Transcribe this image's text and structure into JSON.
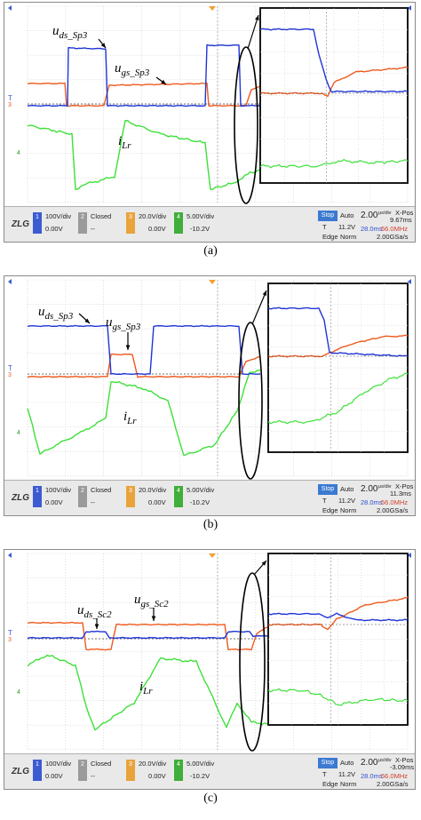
{
  "panels": [
    {
      "caption": "(a)",
      "labels": {
        "uds": {
          "main": "u",
          "sub": "ds_Sp3"
        },
        "ugs": {
          "main": "u",
          "sub": "gs_Sp3"
        },
        "ilr": {
          "main": "i",
          "sub": "Lr"
        }
      },
      "status": {
        "ch1_scale": "100V/div",
        "ch1_offset": "0.00V",
        "ch2_state": "Closed",
        "ch2_offset": "--",
        "ch3_scale": "20.0V/div",
        "ch3_offset": "0.00V",
        "ch4_scale": "5.00V/div",
        "ch4_offset": "-10.2V",
        "mode": "Stop",
        "trigger": "Auto",
        "time_div": "2.00",
        "time_unit": "μs/div",
        "xpos_label": "X-Pos",
        "xpos": "9.67ms",
        "t_level": "11.2V",
        "record": "28.0ms",
        "freq": "56.0MHz",
        "edge": "Edge",
        "norm": "Norm",
        "rate": "2.00GSa/s"
      }
    },
    {
      "caption": "(b)",
      "labels": {
        "uds": {
          "main": "u",
          "sub": "ds_Sp3"
        },
        "ugs": {
          "main": "u",
          "sub": "gs_Sp3"
        },
        "ilr": {
          "main": "i",
          "sub": "Lr"
        }
      },
      "status": {
        "ch1_scale": "100V/div",
        "ch1_offset": "0.00V",
        "ch2_state": "Closed",
        "ch2_offset": "--",
        "ch3_scale": "20.0V/div",
        "ch3_offset": "0.00V",
        "ch4_scale": "5.00V/div",
        "ch4_offset": "-10.2V",
        "mode": "Stop",
        "trigger": "Auto",
        "time_div": "2.00",
        "time_unit": "μs/div",
        "xpos_label": "X-Pos",
        "xpos": "11.3ms",
        "t_level": "11.2V",
        "record": "28.0ms",
        "freq": "56.0MHz",
        "edge": "Edge",
        "norm": "Norm",
        "rate": "2.00GSa/s"
      }
    },
    {
      "caption": "(c)",
      "labels": {
        "uds": {
          "main": "u",
          "sub": "ds_Sc2"
        },
        "ugs": {
          "main": "u",
          "sub": "gs_Sc2"
        },
        "ilr": {
          "main": "i",
          "sub": "Lr"
        }
      },
      "status": {
        "ch1_scale": "100V/div",
        "ch1_offset": "0.00V",
        "ch2_state": "Closed",
        "ch2_offset": "--",
        "ch3_scale": "20.0V/div",
        "ch3_offset": "0.00V",
        "ch4_scale": "5.00V/div",
        "ch4_offset": "-10.2V",
        "mode": "Stop",
        "trigger": "Auto",
        "time_div": "2.00",
        "time_unit": "μs/div",
        "xpos_label": "X-Pos",
        "xpos": "-3.09ms",
        "t_level": "11.2V",
        "record": "28.0ms",
        "freq": "56.0MHz",
        "edge": "Edge",
        "norm": "Norm",
        "rate": "2.00GSa/s"
      }
    }
  ],
  "markers": {
    "t": "T",
    "ch3": "3",
    "ch4": "4"
  },
  "channel_numbers": [
    "1",
    "2",
    "3",
    "4"
  ],
  "logo": "ZLG",
  "colors": {
    "ch1": "#1f35d6",
    "ch3": "#ef5a1e",
    "ch4": "#3ee03a",
    "grid": "#c9c9c9",
    "ch2_box": "#9a9a9a",
    "ch3_box": "#e8a33a",
    "ch4_box": "#3fae3a",
    "ch1_box": "#3c5bd1"
  },
  "chart_data": [
    {
      "type": "line",
      "title": "",
      "series": [
        {
          "name": "u_ds_Sp3",
          "x": [
            0,
            1,
            1.1,
            2.4,
            2.5,
            5,
            5.1,
            5.5,
            6
          ],
          "y": [
            0,
            0,
            2.9,
            2.9,
            0,
            0,
            2.4,
            2.4,
            0
          ]
        },
        {
          "name": "u_gs_Sp3",
          "x": [
            0,
            1,
            1.1,
            2.4,
            2.6,
            5,
            5.1,
            5.5,
            6
          ],
          "y": [
            1,
            1,
            0,
            0,
            1,
            1,
            0,
            0,
            0.6
          ]
        },
        {
          "name": "i_Lr",
          "x": [
            0,
            1,
            1.4,
            2.4,
            3,
            4,
            5,
            5.3,
            6
          ],
          "y": [
            -0.5,
            -0.8,
            -3,
            -2.6,
            -0.4,
            -1.3,
            -1.7,
            -2.9,
            -2.5
          ]
        }
      ],
      "zoom": "inset"
    },
    {
      "type": "line",
      "title": "",
      "series": [
        {
          "name": "u_ds_Sp3",
          "x": [
            0,
            1.6,
            1.7,
            2.8,
            2.9,
            5.3,
            5.4,
            6
          ],
          "y": [
            2,
            2,
            0,
            0,
            2,
            2,
            0,
            0
          ]
        },
        {
          "name": "u_gs_Sp3",
          "x": [
            0,
            2,
            2.1,
            2.8,
            2.9,
            5.3,
            5.5,
            6
          ],
          "y": [
            0,
            0,
            1,
            1,
            0,
            0,
            0.8,
            0.8
          ]
        },
        {
          "name": "i_Lr",
          "x": [
            0,
            0.5,
            2.1,
            3,
            3.4,
            4.4,
            5.3,
            6
          ],
          "y": [
            -0.9,
            -2.7,
            -1,
            -0.6,
            -2.6,
            -1.1,
            -2.3,
            -1.5
          ]
        }
      ],
      "zoom": "inset"
    },
    {
      "type": "line",
      "title": "",
      "series": [
        {
          "name": "u_ds_Sc2",
          "x": [
            0,
            1.5,
            1.6,
            2.1,
            2.2,
            5.2,
            5.3,
            6
          ],
          "y": [
            0,
            0,
            0.2,
            0.2,
            0,
            0,
            0.2,
            0.2
          ]
        },
        {
          "name": "u_gs_Sc2",
          "x": [
            0,
            1.5,
            1.6,
            2.1,
            2.2,
            5.2,
            5.4,
            6
          ],
          "y": [
            0.4,
            0.4,
            -0.3,
            -0.3,
            0.4,
            0.4,
            0,
            0.6
          ]
        },
        {
          "name": "i_Lr",
          "x": [
            0,
            0.5,
            1.5,
            1.8,
            3,
            3.5,
            4.5,
            5.2,
            6
          ],
          "y": [
            -0.5,
            -0.8,
            -1.2,
            -2.8,
            -1,
            -0.8,
            -2.6,
            -1.4,
            -1.6
          ]
        }
      ],
      "zoom": "inset"
    }
  ]
}
